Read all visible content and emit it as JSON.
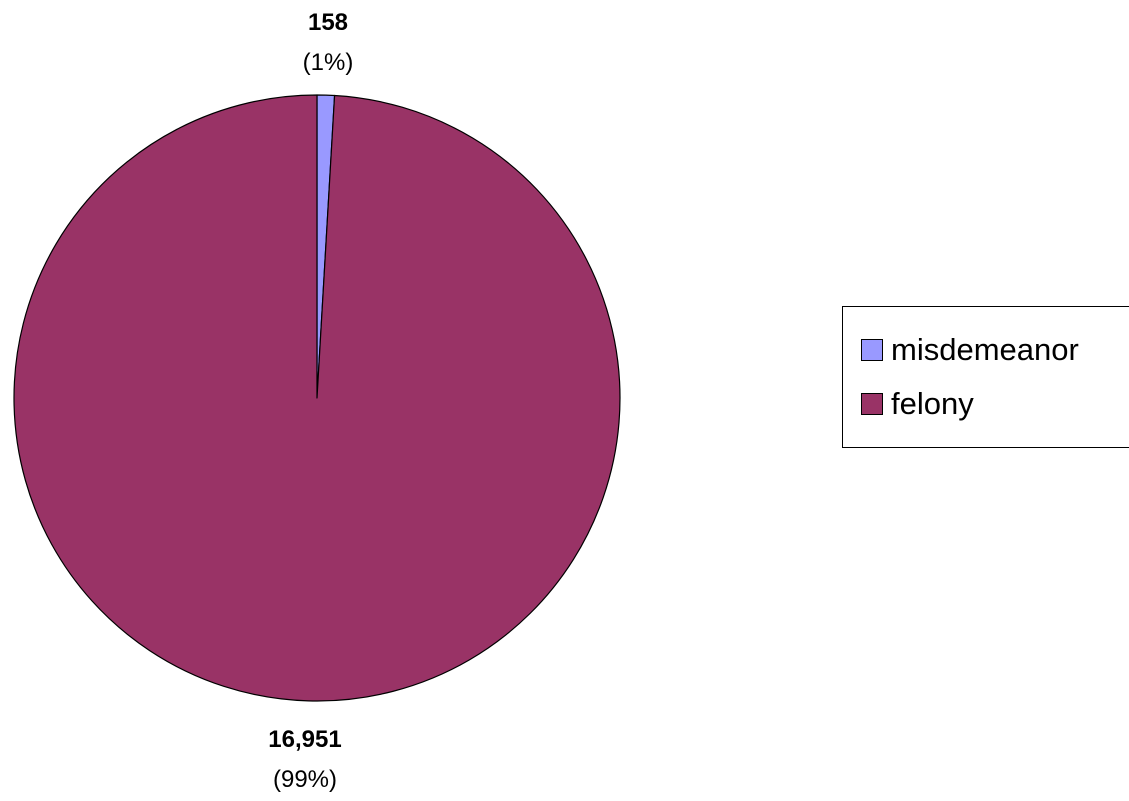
{
  "chart_data": {
    "type": "pie",
    "start_angle": "top (12 o'clock), clockwise",
    "slices": [
      {
        "name": "misdemeanor",
        "value": 158,
        "value_label": "158",
        "percent_label": "(1%)",
        "color": "#9999FF"
      },
      {
        "name": "felony",
        "value": 16951,
        "value_label": "16,951",
        "percent_label": "(99%)",
        "color": "#993366"
      }
    ],
    "legend": {
      "placement": "right",
      "entries": [
        "misdemeanor",
        "felony"
      ]
    }
  }
}
